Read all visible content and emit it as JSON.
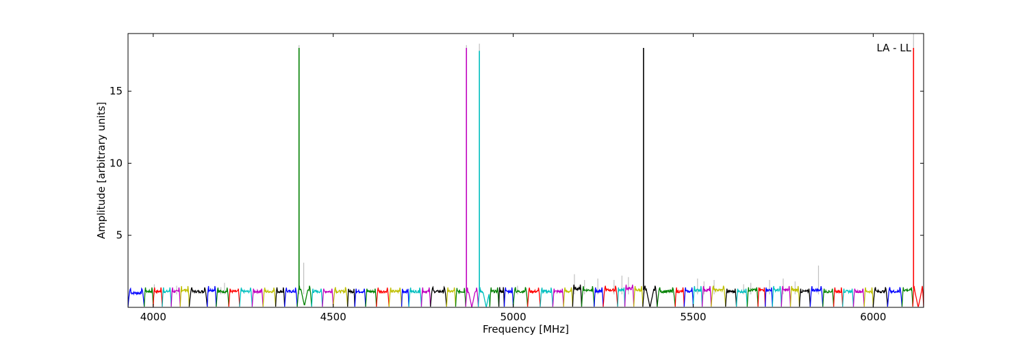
{
  "chart_data": {
    "type": "line",
    "title": "",
    "annotation": "LA - LL",
    "xlabel": "Frequency [MHz]",
    "ylabel": "Amplitude [arbitrary units]",
    "xlim": [
      3930,
      6140
    ],
    "ylim": [
      0,
      19
    ],
    "xticks": [
      4000,
      4500,
      5000,
      5500,
      6000
    ],
    "yticks": [
      5,
      10,
      15
    ],
    "grid": false,
    "legend": "none",
    "background_series": {
      "color": "#bfbfbf",
      "spikes": [
        {
          "x": 4003,
          "y": 1.6
        },
        {
          "x": 4065,
          "y": 1.5
        },
        {
          "x": 4188,
          "y": 1.4
        },
        {
          "x": 4198,
          "y": 1.7
        },
        {
          "x": 4418,
          "y": 3.1
        },
        {
          "x": 5012,
          "y": 1.5
        },
        {
          "x": 5170,
          "y": 2.3
        },
        {
          "x": 5198,
          "y": 1.9
        },
        {
          "x": 5235,
          "y": 2.0
        },
        {
          "x": 5280,
          "y": 1.9
        },
        {
          "x": 5302,
          "y": 2.2
        },
        {
          "x": 5320,
          "y": 2.1
        },
        {
          "x": 5512,
          "y": 2.0
        },
        {
          "x": 5530,
          "y": 1.8
        },
        {
          "x": 5558,
          "y": 1.9
        },
        {
          "x": 5640,
          "y": 1.6
        },
        {
          "x": 5660,
          "y": 1.7
        },
        {
          "x": 5712,
          "y": 1.9
        },
        {
          "x": 5750,
          "y": 2.0
        },
        {
          "x": 5783,
          "y": 1.8
        },
        {
          "x": 5848,
          "y": 2.9
        },
        {
          "x": 4870,
          "y": 18.2
        },
        {
          "x": 4906,
          "y": 18.3
        },
        {
          "x": 4405,
          "y": 18.2
        },
        {
          "x": 5362,
          "y": 18.0
        },
        {
          "x": 6112,
          "y": 19.0
        }
      ]
    },
    "series": [
      {
        "color": "#0000ff",
        "start": 3930,
        "end": 3975,
        "baseline": 1.0
      },
      {
        "color": "#008000",
        "start": 3975,
        "end": 4000,
        "baseline": 1.1
      },
      {
        "color": "#ff0000",
        "start": 4000,
        "end": 4025,
        "baseline": 1.1
      },
      {
        "color": "#00bfbf",
        "start": 4025,
        "end": 4050,
        "baseline": 1.1
      },
      {
        "color": "#bf00bf",
        "start": 4050,
        "end": 4075,
        "baseline": 1.1
      },
      {
        "color": "#bfbf00",
        "start": 4075,
        "end": 4100,
        "baseline": 1.2
      },
      {
        "color": "#000000",
        "start": 4100,
        "end": 4150,
        "baseline": 1.1
      },
      {
        "color": "#0000ff",
        "start": 4150,
        "end": 4175,
        "baseline": 1.2
      },
      {
        "color": "#008000",
        "start": 4175,
        "end": 4210,
        "baseline": 1.1
      },
      {
        "color": "#ff0000",
        "start": 4210,
        "end": 4240,
        "baseline": 1.1
      },
      {
        "color": "#00bfbf",
        "start": 4240,
        "end": 4275,
        "baseline": 1.1
      },
      {
        "color": "#bf00bf",
        "start": 4275,
        "end": 4305,
        "baseline": 1.1
      },
      {
        "color": "#bfbf00",
        "start": 4305,
        "end": 4340,
        "baseline": 1.1
      },
      {
        "color": "#000000",
        "start": 4340,
        "end": 4365,
        "baseline": 1.1
      },
      {
        "color": "#0000ff",
        "start": 4365,
        "end": 4400,
        "baseline": 1.1
      },
      {
        "color": "#008000",
        "start": 4400,
        "end": 4440,
        "baseline": 1.2,
        "spike": {
          "x": 4405,
          "y": 18.0
        },
        "dip": {
          "x": 4420,
          "y": 0.1
        }
      },
      {
        "color": "#00bfbf",
        "start": 4440,
        "end": 4470,
        "baseline": 1.1
      },
      {
        "color": "#bf00bf",
        "start": 4470,
        "end": 4500,
        "baseline": 1.1
      },
      {
        "color": "#bfbf00",
        "start": 4500,
        "end": 4540,
        "baseline": 1.1
      },
      {
        "color": "#000000",
        "start": 4540,
        "end": 4560,
        "baseline": 1.1
      },
      {
        "color": "#0000ff",
        "start": 4560,
        "end": 4590,
        "baseline": 1.1
      },
      {
        "color": "#008000",
        "start": 4590,
        "end": 4620,
        "baseline": 1.1
      },
      {
        "color": "#ff0000",
        "start": 4620,
        "end": 4655,
        "baseline": 1.1
      },
      {
        "color": "#bfbf00",
        "start": 4655,
        "end": 4690,
        "baseline": 1.1
      },
      {
        "color": "#0000ff",
        "start": 4690,
        "end": 4710,
        "baseline": 1.1
      },
      {
        "color": "#00bfbf",
        "start": 4710,
        "end": 4745,
        "baseline": 1.1
      },
      {
        "color": "#bf00bf",
        "start": 4745,
        "end": 4770,
        "baseline": 1.1
      },
      {
        "color": "#000000",
        "start": 4770,
        "end": 4815,
        "baseline": 1.1
      },
      {
        "color": "#bfbf00",
        "start": 4815,
        "end": 4840,
        "baseline": 1.1
      },
      {
        "color": "#008000",
        "start": 4840,
        "end": 4868,
        "baseline": 1.1
      },
      {
        "color": "#bf00bf",
        "start": 4868,
        "end": 4903,
        "baseline": 1.1,
        "spike": {
          "x": 4870,
          "y": 18.0
        },
        "dip": {
          "x": 4885,
          "y": 0.0
        }
      },
      {
        "color": "#00bfbf",
        "start": 4903,
        "end": 4935,
        "baseline": 1.1,
        "spike": {
          "x": 4906,
          "y": 17.8
        },
        "dip": {
          "x": 4925,
          "y": 0.0
        }
      },
      {
        "color": "#008000",
        "start": 4935,
        "end": 4960,
        "baseline": 1.1
      },
      {
        "color": "#000000",
        "start": 4960,
        "end": 4975,
        "baseline": 1.1
      },
      {
        "color": "#0000ff",
        "start": 4975,
        "end": 5000,
        "baseline": 1.1
      },
      {
        "color": "#008000",
        "start": 5000,
        "end": 5040,
        "baseline": 1.1
      },
      {
        "color": "#ff0000",
        "start": 5040,
        "end": 5075,
        "baseline": 1.1
      },
      {
        "color": "#00bfbf",
        "start": 5075,
        "end": 5110,
        "baseline": 1.1
      },
      {
        "color": "#bf00bf",
        "start": 5110,
        "end": 5140,
        "baseline": 1.1
      },
      {
        "color": "#bfbf00",
        "start": 5140,
        "end": 5165,
        "baseline": 1.1
      },
      {
        "color": "#000000",
        "start": 5165,
        "end": 5190,
        "baseline": 1.3
      },
      {
        "color": "#008000",
        "start": 5190,
        "end": 5225,
        "baseline": 1.2
      },
      {
        "color": "#0000ff",
        "start": 5225,
        "end": 5250,
        "baseline": 1.1
      },
      {
        "color": "#ff0000",
        "start": 5250,
        "end": 5290,
        "baseline": 1.2
      },
      {
        "color": "#00bfbf",
        "start": 5290,
        "end": 5310,
        "baseline": 1.2
      },
      {
        "color": "#bf00bf",
        "start": 5310,
        "end": 5335,
        "baseline": 1.3
      },
      {
        "color": "#bfbf00",
        "start": 5335,
        "end": 5360,
        "baseline": 1.2
      },
      {
        "color": "#000000",
        "start": 5360,
        "end": 5400,
        "baseline": 1.2,
        "spike": {
          "x": 5362,
          "y": 18.0
        },
        "dip": {
          "x": 5380,
          "y": 0.0
        }
      },
      {
        "color": "#008000",
        "start": 5400,
        "end": 5450,
        "baseline": 1.1
      },
      {
        "color": "#ff0000",
        "start": 5450,
        "end": 5475,
        "baseline": 1.1
      },
      {
        "color": "#0000ff",
        "start": 5475,
        "end": 5500,
        "baseline": 1.1
      },
      {
        "color": "#00bfbf",
        "start": 5500,
        "end": 5525,
        "baseline": 1.2
      },
      {
        "color": "#bf00bf",
        "start": 5525,
        "end": 5550,
        "baseline": 1.2
      },
      {
        "color": "#bfbf00",
        "start": 5550,
        "end": 5590,
        "baseline": 1.2
      },
      {
        "color": "#000000",
        "start": 5590,
        "end": 5620,
        "baseline": 1.1
      },
      {
        "color": "#00bfbf",
        "start": 5620,
        "end": 5650,
        "baseline": 1.1
      },
      {
        "color": "#008000",
        "start": 5650,
        "end": 5680,
        "baseline": 1.2
      },
      {
        "color": "#ff0000",
        "start": 5680,
        "end": 5700,
        "baseline": 1.2
      },
      {
        "color": "#0000ff",
        "start": 5700,
        "end": 5720,
        "baseline": 1.2
      },
      {
        "color": "#00bfbf",
        "start": 5720,
        "end": 5745,
        "baseline": 1.2
      },
      {
        "color": "#bf00bf",
        "start": 5745,
        "end": 5770,
        "baseline": 1.2
      },
      {
        "color": "#bfbf00",
        "start": 5770,
        "end": 5795,
        "baseline": 1.2
      },
      {
        "color": "#000000",
        "start": 5795,
        "end": 5825,
        "baseline": 1.1
      },
      {
        "color": "#0000ff",
        "start": 5825,
        "end": 5860,
        "baseline": 1.2
      },
      {
        "color": "#008000",
        "start": 5860,
        "end": 5890,
        "baseline": 1.1
      },
      {
        "color": "#ff0000",
        "start": 5890,
        "end": 5915,
        "baseline": 1.1
      },
      {
        "color": "#00bfbf",
        "start": 5915,
        "end": 5945,
        "baseline": 1.1
      },
      {
        "color": "#bf00bf",
        "start": 5945,
        "end": 5975,
        "baseline": 1.1
      },
      {
        "color": "#bfbf00",
        "start": 5975,
        "end": 6000,
        "baseline": 1.1
      },
      {
        "color": "#000000",
        "start": 6000,
        "end": 6040,
        "baseline": 1.1
      },
      {
        "color": "#0000ff",
        "start": 6040,
        "end": 6080,
        "baseline": 1.1
      },
      {
        "color": "#008000",
        "start": 6080,
        "end": 6110,
        "baseline": 1.2
      },
      {
        "color": "#ff0000",
        "start": 6110,
        "end": 6140,
        "baseline": 1.3,
        "spike": {
          "x": 6112,
          "y": 18.0
        },
        "dip": {
          "x": 6125,
          "y": 0.0
        }
      }
    ]
  }
}
